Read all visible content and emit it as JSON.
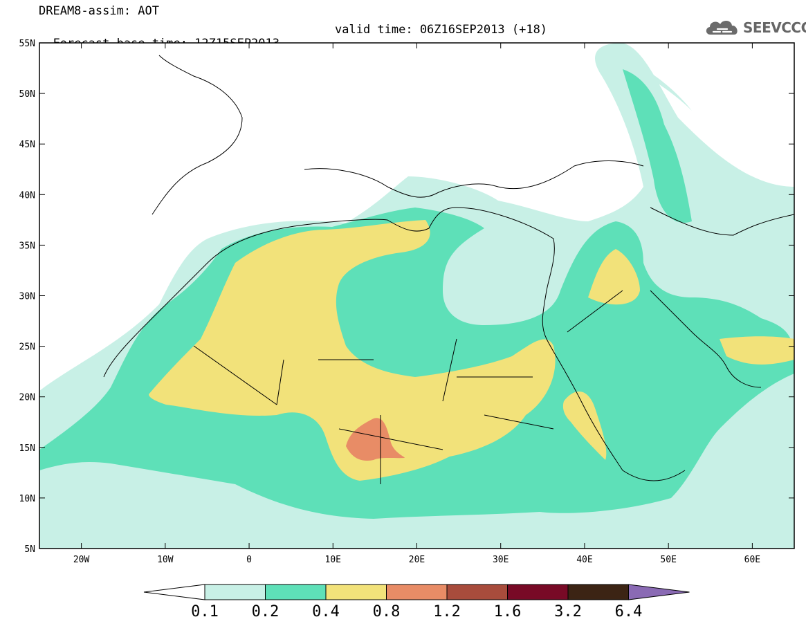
{
  "header": {
    "title": "DREAM8-assim: AOT",
    "base_time": "Forecast base time: 12Z15SEP2013",
    "valid_time": "valid time: 06Z16SEP2013 (+18)"
  },
  "logo": {
    "text": "SEEVCCC",
    "icon": "cloud-icon"
  },
  "map": {
    "lon_range": [
      -25,
      65
    ],
    "lat_range": [
      5,
      55
    ],
    "lon_ticks": [
      "20W",
      "10W",
      "0",
      "10E",
      "20E",
      "30E",
      "40E",
      "50E",
      "60E"
    ],
    "lat_ticks": [
      "5N",
      "10N",
      "15N",
      "20N",
      "25N",
      "30N",
      "35N",
      "40N",
      "45N",
      "50N",
      "55N"
    ]
  },
  "colorbar": {
    "labels": [
      "0.1",
      "0.2",
      "0.4",
      "0.8",
      "1.2",
      "1.6",
      "3.2",
      "6.4"
    ],
    "colors": [
      "#c8f0e6",
      "#5ee0b8",
      "#f2e27a",
      "#e88c66",
      "#a84c3c",
      "#780a26",
      "#3c2414",
      "#8a6ab4"
    ]
  }
}
